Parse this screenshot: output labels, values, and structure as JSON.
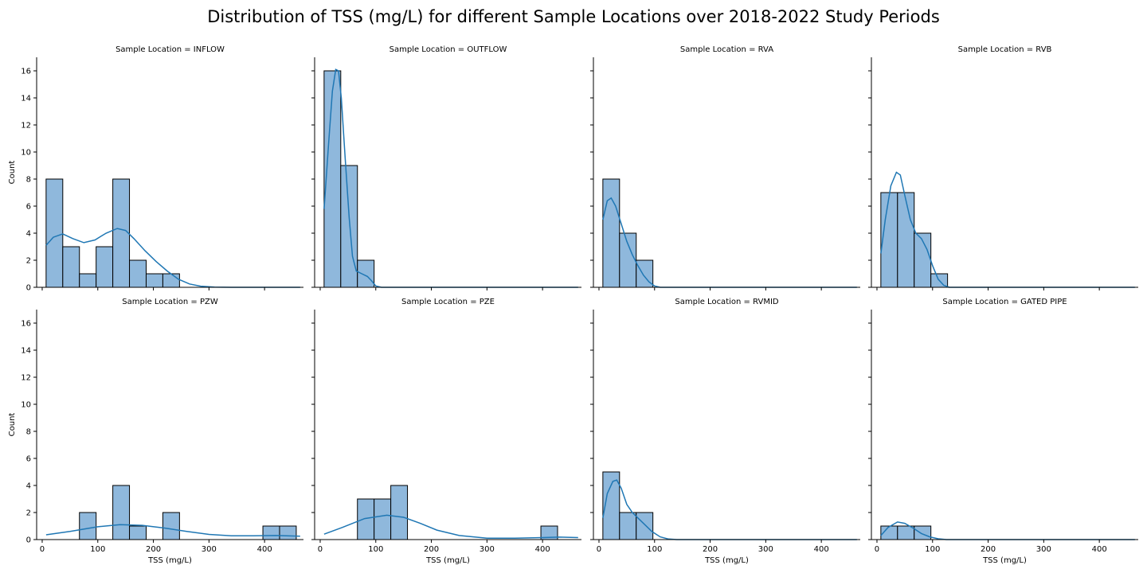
{
  "figure_title": "Distribution of TSS (mg/L) for different Sample Locations over 2018-2022 Study Periods",
  "colors": {
    "bar_fill": "#8fb8dc",
    "bar_edge": "#000000",
    "kde_line": "#1f77b4",
    "axis": "#000000"
  },
  "chart_data": {
    "type": "histogram",
    "xlabel": "TSS (mg/L)",
    "ylabel": "Count",
    "xlim": [
      -10,
      470
    ],
    "ylim": [
      0,
      17
    ],
    "xticks": [
      0,
      100,
      200,
      300,
      400
    ],
    "yticks": [
      0,
      2,
      4,
      6,
      8,
      10,
      12,
      14,
      16
    ],
    "bin_width": 30,
    "bin_start": 7,
    "kde": true,
    "panels": [
      {
        "title": "Sample Location = INFLOW",
        "bins": [
          [
            7,
            37,
            8
          ],
          [
            37,
            67,
            3
          ],
          [
            67,
            97,
            1
          ],
          [
            97,
            127,
            3
          ],
          [
            127,
            157,
            8
          ],
          [
            157,
            187,
            2
          ],
          [
            187,
            217,
            1
          ],
          [
            217,
            247,
            1
          ]
        ],
        "kde_points": [
          [
            7,
            3.1
          ],
          [
            20,
            3.7
          ],
          [
            37,
            3.95
          ],
          [
            55,
            3.6
          ],
          [
            75,
            3.3
          ],
          [
            95,
            3.5
          ],
          [
            115,
            4.0
          ],
          [
            135,
            4.35
          ],
          [
            150,
            4.2
          ],
          [
            165,
            3.6
          ],
          [
            185,
            2.7
          ],
          [
            205,
            1.9
          ],
          [
            225,
            1.2
          ],
          [
            245,
            0.6
          ],
          [
            265,
            0.25
          ],
          [
            285,
            0.08
          ],
          [
            310,
            0.02
          ],
          [
            340,
            0.0
          ],
          [
            464,
            0.0
          ]
        ]
      },
      {
        "title": "Sample Location = OUTFLOW",
        "bins": [
          [
            7,
            37,
            16
          ],
          [
            37,
            67,
            9
          ],
          [
            67,
            97,
            2
          ]
        ],
        "kde_points": [
          [
            7,
            5.8
          ],
          [
            15,
            10.5
          ],
          [
            22,
            14.5
          ],
          [
            28,
            16.1
          ],
          [
            33,
            16.0
          ],
          [
            38,
            14.0
          ],
          [
            45,
            9.5
          ],
          [
            52,
            5.2
          ],
          [
            58,
            2.3
          ],
          [
            65,
            1.2
          ],
          [
            75,
            1.0
          ],
          [
            85,
            0.8
          ],
          [
            92,
            0.5
          ],
          [
            100,
            0.1
          ],
          [
            110,
            0.0
          ],
          [
            464,
            0.0
          ]
        ]
      },
      {
        "title": "Sample Location = RVA",
        "bins": [
          [
            7,
            37,
            8
          ],
          [
            37,
            67,
            4
          ],
          [
            67,
            97,
            2
          ]
        ],
        "kde_points": [
          [
            7,
            5.0
          ],
          [
            15,
            6.4
          ],
          [
            22,
            6.6
          ],
          [
            30,
            6.0
          ],
          [
            40,
            4.7
          ],
          [
            50,
            3.4
          ],
          [
            60,
            2.4
          ],
          [
            70,
            1.6
          ],
          [
            80,
            0.9
          ],
          [
            90,
            0.4
          ],
          [
            100,
            0.1
          ],
          [
            110,
            0.0
          ],
          [
            464,
            0.0
          ]
        ]
      },
      {
        "title": "Sample Location = RVB",
        "bins": [
          [
            7,
            37,
            7
          ],
          [
            37,
            67,
            7
          ],
          [
            67,
            97,
            4
          ],
          [
            97,
            127,
            1
          ]
        ],
        "kde_points": [
          [
            7,
            2.5
          ],
          [
            15,
            5.0
          ],
          [
            25,
            7.5
          ],
          [
            35,
            8.5
          ],
          [
            42,
            8.3
          ],
          [
            50,
            6.8
          ],
          [
            60,
            5.0
          ],
          [
            70,
            4.0
          ],
          [
            80,
            3.6
          ],
          [
            90,
            2.8
          ],
          [
            100,
            1.6
          ],
          [
            110,
            0.6
          ],
          [
            120,
            0.15
          ],
          [
            130,
            0.0
          ],
          [
            464,
            0.0
          ]
        ]
      },
      {
        "title": "Sample Location = PZW",
        "bins": [
          [
            67,
            97,
            2
          ],
          [
            127,
            157,
            4
          ],
          [
            157,
            187,
            1
          ],
          [
            217,
            247,
            2
          ],
          [
            397,
            427,
            1
          ],
          [
            427,
            457,
            1
          ]
        ],
        "kde_points": [
          [
            7,
            0.35
          ],
          [
            50,
            0.6
          ],
          [
            100,
            0.95
          ],
          [
            140,
            1.1
          ],
          [
            180,
            1.05
          ],
          [
            220,
            0.85
          ],
          [
            260,
            0.6
          ],
          [
            300,
            0.38
          ],
          [
            340,
            0.28
          ],
          [
            380,
            0.28
          ],
          [
            420,
            0.3
          ],
          [
            464,
            0.25
          ]
        ]
      },
      {
        "title": "Sample Location = PZE",
        "bins": [
          [
            67,
            97,
            3
          ],
          [
            97,
            127,
            3
          ],
          [
            127,
            157,
            4
          ],
          [
            397,
            427,
            1
          ]
        ],
        "kde_points": [
          [
            7,
            0.4
          ],
          [
            40,
            0.9
          ],
          [
            80,
            1.55
          ],
          [
            120,
            1.8
          ],
          [
            150,
            1.65
          ],
          [
            180,
            1.2
          ],
          [
            210,
            0.7
          ],
          [
            250,
            0.3
          ],
          [
            300,
            0.1
          ],
          [
            350,
            0.1
          ],
          [
            400,
            0.15
          ],
          [
            430,
            0.18
          ],
          [
            464,
            0.15
          ]
        ]
      },
      {
        "title": "Sample Location = RVMID",
        "bins": [
          [
            7,
            37,
            5
          ],
          [
            37,
            67,
            2
          ],
          [
            67,
            97,
            2
          ]
        ],
        "kde_points": [
          [
            7,
            1.6
          ],
          [
            15,
            3.4
          ],
          [
            25,
            4.3
          ],
          [
            32,
            4.4
          ],
          [
            40,
            3.8
          ],
          [
            50,
            2.6
          ],
          [
            60,
            2.0
          ],
          [
            70,
            1.6
          ],
          [
            80,
            1.2
          ],
          [
            95,
            0.6
          ],
          [
            110,
            0.2
          ],
          [
            125,
            0.04
          ],
          [
            140,
            0.0
          ],
          [
            464,
            0.0
          ]
        ]
      },
      {
        "title": "Sample Location = GATED PIPE",
        "bins": [
          [
            7,
            37,
            1
          ],
          [
            37,
            67,
            1
          ],
          [
            67,
            97,
            1
          ]
        ],
        "kde_points": [
          [
            7,
            0.3
          ],
          [
            20,
            0.9
          ],
          [
            37,
            1.3
          ],
          [
            50,
            1.2
          ],
          [
            65,
            0.85
          ],
          [
            80,
            0.45
          ],
          [
            95,
            0.2
          ],
          [
            110,
            0.06
          ],
          [
            125,
            0.0
          ],
          [
            464,
            0.0
          ]
        ]
      }
    ]
  }
}
